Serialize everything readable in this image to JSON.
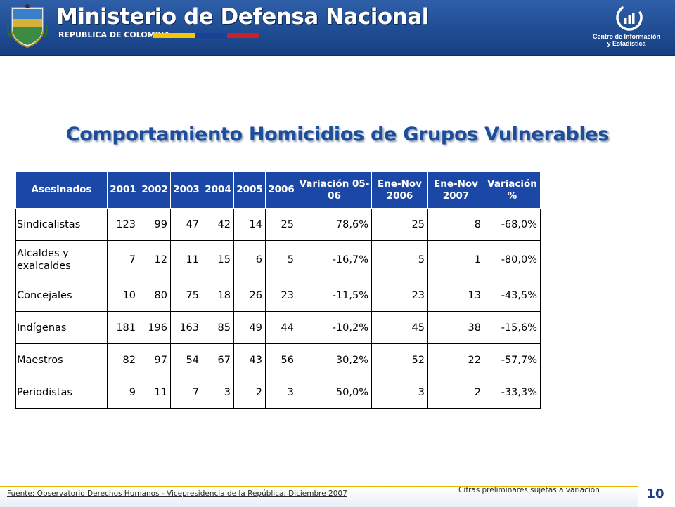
{
  "header": {
    "ministry_name": "Ministerio de Defensa Nacional",
    "country": "REPUBLICA DE COLOMBIA",
    "center_line1": "Centro de Información",
    "center_line2": "y Estadística",
    "flag_colors": [
      "#f6c700",
      "#1c3f9a",
      "#cc1f26"
    ]
  },
  "title": "Comportamiento Homicidios de Grupos Vulnerables",
  "table": {
    "columns": [
      "Asesinados",
      "2001",
      "2002",
      "2003",
      "2004",
      "2005",
      "2006",
      "Variación 05-06",
      "Ene-Nov 2006",
      "Ene-Nov 2007",
      "Variación %"
    ],
    "rows": [
      [
        "Sindicalistas",
        "123",
        "99",
        "47",
        "42",
        "14",
        "25",
        "78,6%",
        "25",
        "8",
        "-68,0%"
      ],
      [
        "Alcaldes y exalcaldes",
        "7",
        "12",
        "11",
        "15",
        "6",
        "5",
        "-16,7%",
        "5",
        "1",
        "-80,0%"
      ],
      [
        "Concejales",
        "10",
        "80",
        "75",
        "18",
        "26",
        "23",
        "-11,5%",
        "23",
        "13",
        "-43,5%"
      ],
      [
        "Indígenas",
        "181",
        "196",
        "163",
        "85",
        "49",
        "44",
        "-10,2%",
        "45",
        "38",
        "-15,6%"
      ],
      [
        "Maestros",
        "82",
        "97",
        "54",
        "67",
        "43",
        "56",
        "30,2%",
        "52",
        "22",
        "-57,7%"
      ],
      [
        "Periodistas",
        "9",
        "11",
        "7",
        "3",
        "2",
        "3",
        "50,0%",
        "3",
        "2",
        "-33,3%"
      ]
    ]
  },
  "footer": {
    "source": "Fuente: Observatorio Derechos Humanos - Vicepresidencia de la República. Diciembre 2007",
    "note": "Cifras preliminares sujetas a variación",
    "page_number": "10"
  },
  "colors": {
    "header_blue": "#1f4d94",
    "table_header": "#1b47a6",
    "title_blue": "#1e4d9b",
    "footer_accent": "#e8b400"
  }
}
